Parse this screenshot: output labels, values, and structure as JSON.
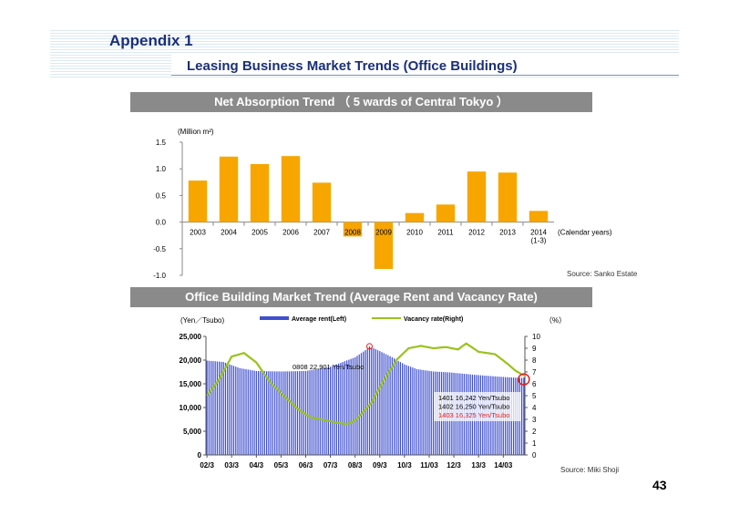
{
  "header": {
    "appendix": "Appendix 1",
    "subtitle": "Leasing Business Market Trends (Office Buildings)"
  },
  "page_number": "43",
  "colors": {
    "bar": "#f7a600",
    "rent": "#3f4fd0",
    "vacancy": "#9ac21c",
    "title_bg": "#8a8a8a",
    "header_text": "#1a2f7a",
    "annotation_red": "#e02020"
  },
  "chart_data": [
    {
      "type": "bar",
      "title": "Net  Absorption Trend （ 5 wards of Central Tokyo ）",
      "ylabel": "(Million m²)",
      "xlabel": "(Calendar years)",
      "categories": [
        "2003",
        "2004",
        "2005",
        "2006",
        "2007",
        "2008",
        "2009",
        "2010",
        "2011",
        "2012",
        "2013",
        "2014"
      ],
      "category_sub": {
        "2014": "(1-3)"
      },
      "values": [
        0.78,
        1.23,
        1.09,
        1.24,
        0.74,
        -0.27,
        -0.88,
        0.17,
        0.33,
        0.95,
        0.93,
        0.21
      ],
      "ylim": [
        -1.0,
        1.5
      ],
      "yticks": [
        "1.5",
        "1.0",
        "0.5",
        "0.0",
        "-0.5",
        "-1.0"
      ],
      "source": "Source:  Sanko Estate"
    },
    {
      "type": "bar+line",
      "title": "Office Building Market Trend (Average Rent and Vacancy Rate)",
      "ylabel_left": "(Yen／Tsubo)",
      "ylabel_right": "（%）",
      "legend": {
        "rent": "Average rent(Left)",
        "vacancy": "Vacancy rate(Right)"
      },
      "xticks": [
        "02/3",
        "03/3",
        "04/3",
        "05/3",
        "06/3",
        "07/3",
        "08/3",
        "09/3",
        "10/3",
        "11/03",
        "12/3",
        "13/3",
        "14/03"
      ],
      "yticks_left": [
        "25,000",
        "20,000",
        "15,000",
        "10,000",
        "5,000",
        "0"
      ],
      "yticks_right": [
        "10",
        "9",
        "8",
        "7",
        "6",
        "5",
        "4",
        "3",
        "2",
        "1",
        "0"
      ],
      "ylim_left": [
        0,
        25000
      ],
      "ylim_right": [
        0,
        10
      ],
      "rent_keypoints": [
        [
          0,
          19900
        ],
        [
          8,
          19600
        ],
        [
          16,
          18300
        ],
        [
          24,
          17700
        ],
        [
          36,
          17600
        ],
        [
          48,
          17700
        ],
        [
          60,
          18600
        ],
        [
          72,
          20600
        ],
        [
          78,
          22400
        ],
        [
          79,
          22901
        ],
        [
          84,
          21900
        ],
        [
          90,
          20600
        ],
        [
          96,
          19100
        ],
        [
          102,
          18100
        ],
        [
          110,
          17600
        ],
        [
          118,
          17400
        ],
        [
          130,
          16900
        ],
        [
          142,
          16500
        ],
        [
          150,
          16300
        ],
        [
          152,
          16242
        ],
        [
          153,
          16250
        ],
        [
          154,
          16325
        ]
      ],
      "vacancy_keypoints": [
        [
          0,
          5.0
        ],
        [
          6,
          6.4
        ],
        [
          12,
          8.3
        ],
        [
          18,
          8.6
        ],
        [
          24,
          7.8
        ],
        [
          30,
          6.3
        ],
        [
          36,
          5.2
        ],
        [
          44,
          3.9
        ],
        [
          50,
          3.2
        ],
        [
          58,
          2.9
        ],
        [
          64,
          2.7
        ],
        [
          68,
          2.6
        ],
        [
          72,
          2.9
        ],
        [
          80,
          4.4
        ],
        [
          86,
          6.3
        ],
        [
          92,
          8.0
        ],
        [
          98,
          9.0
        ],
        [
          104,
          9.2
        ],
        [
          110,
          9.0
        ],
        [
          116,
          9.1
        ],
        [
          122,
          8.9
        ],
        [
          126,
          9.4
        ],
        [
          132,
          8.7
        ],
        [
          140,
          8.5
        ],
        [
          146,
          7.7
        ],
        [
          150,
          7.1
        ],
        [
          154,
          6.7
        ]
      ],
      "annotations": [
        {
          "text": "0808   22,901 Yen/Tsubo",
          "color": "#000000"
        },
        {
          "text": "1401   16,242 Yen/Tsubo",
          "color": "#000000"
        },
        {
          "text": "1402   16,250 Yen/Tsubo",
          "color": "#000000"
        },
        {
          "text": "1403   16,325 Yen/Tsubo",
          "color": "#e02020"
        }
      ],
      "source": "Source:  Miki Shoji"
    }
  ]
}
